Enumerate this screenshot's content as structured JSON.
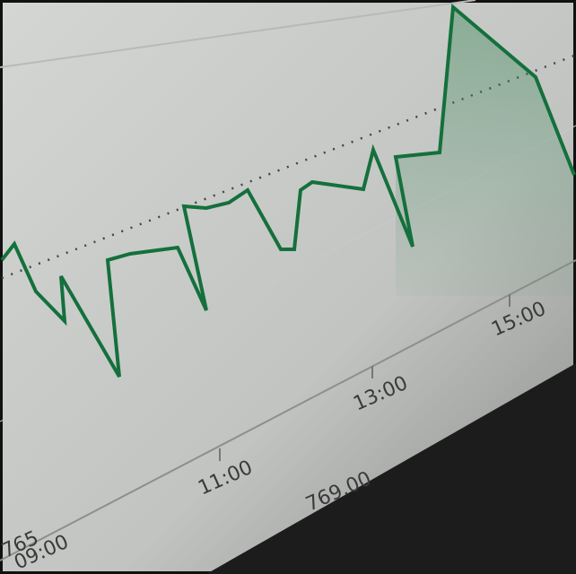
{
  "axis": {
    "time_labels": [
      "09:00",
      "11:00",
      "13:00",
      "15:00"
    ],
    "price_labels": [
      "765",
      "769.00"
    ]
  }
}
